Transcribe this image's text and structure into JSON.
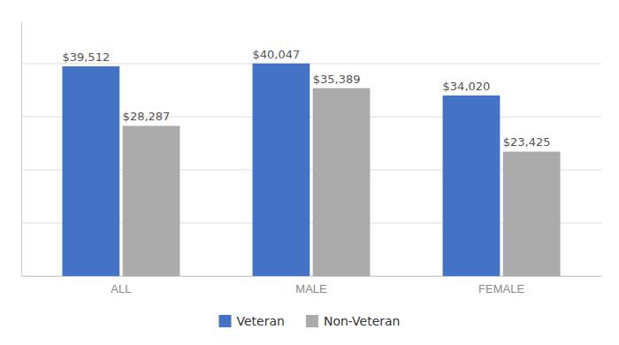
{
  "chart_data": {
    "type": "bar",
    "categories": [
      "ALL",
      "MALE",
      "FEMALE"
    ],
    "series": [
      {
        "name": "Veteran",
        "color": "#4472C4",
        "values": [
          39512,
          40047,
          34020
        ],
        "value_labels": [
          "$39,512",
          "$40,047",
          "$34,020"
        ]
      },
      {
        "name": "Non-Veteran",
        "color": "#ABABAB",
        "values": [
          28287,
          35389,
          23425
        ],
        "value_labels": [
          "$28,287",
          "$35,389",
          "$23,425"
        ]
      }
    ],
    "ylim": [
      0,
      48000
    ],
    "yticks": [
      0,
      10000,
      20000,
      30000,
      40000
    ],
    "grid": true,
    "legend": "bottom",
    "data_labels": true,
    "tick_labels": "x"
  }
}
